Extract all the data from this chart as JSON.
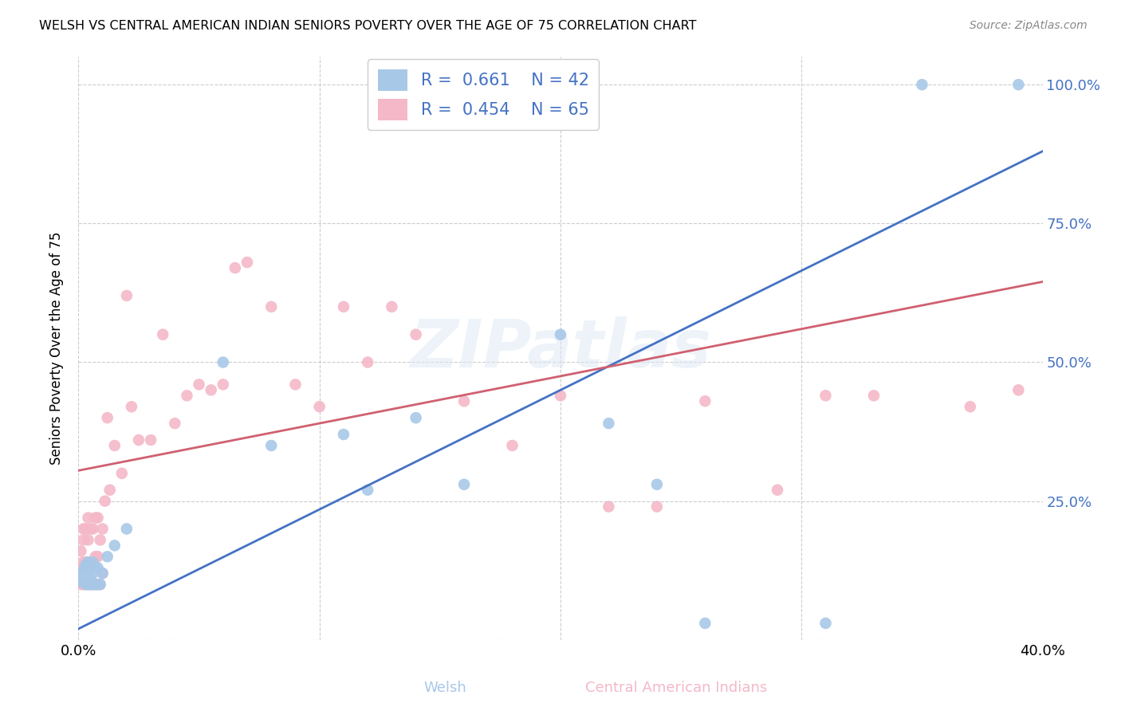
{
  "title": "WELSH VS CENTRAL AMERICAN INDIAN SENIORS POVERTY OVER THE AGE OF 75 CORRELATION CHART",
  "source": "Source: ZipAtlas.com",
  "ylabel": "Seniors Poverty Over the Age of 75",
  "xlabel_welsh": "Welsh",
  "xlabel_cai": "Central American Indians",
  "xlim": [
    0.0,
    0.4
  ],
  "ylim": [
    0.0,
    1.05
  ],
  "yticks": [
    0.0,
    0.25,
    0.5,
    0.75,
    1.0
  ],
  "ytick_labels": [
    "",
    "25.0%",
    "50.0%",
    "75.0%",
    "100.0%"
  ],
  "xticks": [
    0.0,
    0.4
  ],
  "xtick_labels": [
    "0.0%",
    "40.0%"
  ],
  "welsh_R": 0.661,
  "welsh_N": 42,
  "cai_R": 0.454,
  "cai_N": 65,
  "welsh_color": "#a8c8e8",
  "cai_color": "#f4b8c8",
  "welsh_line_color": "#4472c4",
  "cai_line_color": "#d06070",
  "background_color": "#ffffff",
  "watermark": "ZIPatlas",
  "welsh_line_x": [
    0.0,
    0.4
  ],
  "welsh_line_y": [
    0.02,
    0.88
  ],
  "cai_line_x": [
    0.0,
    0.4
  ],
  "cai_line_y": [
    0.305,
    0.645
  ],
  "welsh_x": [
    0.001,
    0.001,
    0.001,
    0.002,
    0.002,
    0.002,
    0.003,
    0.003,
    0.003,
    0.003,
    0.004,
    0.004,
    0.004,
    0.004,
    0.005,
    0.005,
    0.005,
    0.006,
    0.006,
    0.006,
    0.007,
    0.007,
    0.008,
    0.008,
    0.009,
    0.01,
    0.012,
    0.015,
    0.02,
    0.06,
    0.08,
    0.11,
    0.12,
    0.14,
    0.16,
    0.2,
    0.22,
    0.24,
    0.26,
    0.31,
    0.35,
    0.39
  ],
  "welsh_y": [
    0.105,
    0.115,
    0.12,
    0.105,
    0.115,
    0.125,
    0.1,
    0.11,
    0.12,
    0.135,
    0.1,
    0.11,
    0.12,
    0.14,
    0.1,
    0.11,
    0.13,
    0.1,
    0.12,
    0.14,
    0.1,
    0.13,
    0.1,
    0.13,
    0.1,
    0.12,
    0.15,
    0.17,
    0.2,
    0.5,
    0.35,
    0.37,
    0.27,
    0.4,
    0.28,
    0.55,
    0.39,
    0.28,
    0.03,
    0.03,
    1.0,
    1.0
  ],
  "cai_x": [
    0.001,
    0.001,
    0.001,
    0.002,
    0.002,
    0.002,
    0.002,
    0.003,
    0.003,
    0.003,
    0.004,
    0.004,
    0.004,
    0.004,
    0.005,
    0.005,
    0.005,
    0.006,
    0.006,
    0.006,
    0.007,
    0.007,
    0.007,
    0.008,
    0.008,
    0.008,
    0.009,
    0.009,
    0.01,
    0.01,
    0.011,
    0.012,
    0.013,
    0.015,
    0.018,
    0.02,
    0.022,
    0.025,
    0.03,
    0.035,
    0.04,
    0.045,
    0.05,
    0.055,
    0.06,
    0.065,
    0.07,
    0.08,
    0.09,
    0.1,
    0.11,
    0.12,
    0.13,
    0.14,
    0.16,
    0.18,
    0.2,
    0.22,
    0.24,
    0.26,
    0.29,
    0.31,
    0.33,
    0.37,
    0.39
  ],
  "cai_y": [
    0.1,
    0.13,
    0.16,
    0.1,
    0.14,
    0.18,
    0.2,
    0.1,
    0.14,
    0.2,
    0.1,
    0.14,
    0.18,
    0.22,
    0.1,
    0.14,
    0.2,
    0.1,
    0.14,
    0.2,
    0.1,
    0.15,
    0.22,
    0.1,
    0.15,
    0.22,
    0.1,
    0.18,
    0.12,
    0.2,
    0.25,
    0.4,
    0.27,
    0.35,
    0.3,
    0.62,
    0.42,
    0.36,
    0.36,
    0.55,
    0.39,
    0.44,
    0.46,
    0.45,
    0.46,
    0.67,
    0.68,
    0.6,
    0.46,
    0.42,
    0.6,
    0.5,
    0.6,
    0.55,
    0.43,
    0.35,
    0.44,
    0.24,
    0.24,
    0.43,
    0.27,
    0.44,
    0.44,
    0.42,
    0.45
  ]
}
